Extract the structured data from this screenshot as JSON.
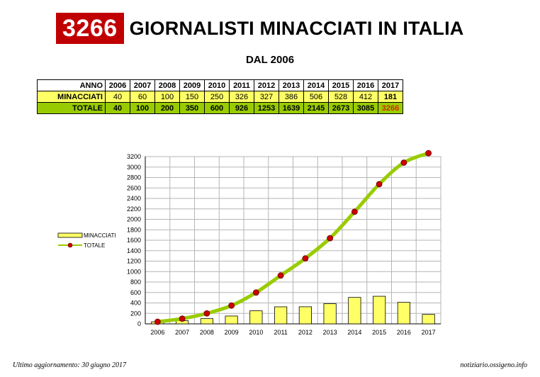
{
  "header": {
    "badge": "3266",
    "title": "GIORNALISTI MINACCIATI IN ITALIA",
    "subtitle": "DAL 2006"
  },
  "table": {
    "row_labels": [
      "ANNO",
      "MINACCIATI",
      "TOTALE"
    ],
    "years": [
      "2006",
      "2007",
      "2008",
      "2009",
      "2010",
      "2011",
      "2012",
      "2013",
      "2014",
      "2015",
      "2016",
      "2017"
    ],
    "minacciati": [
      "40",
      "60",
      "100",
      "150",
      "250",
      "326",
      "327",
      "386",
      "506",
      "528",
      "412",
      "181"
    ],
    "totale": [
      "40",
      "100",
      "200",
      "350",
      "600",
      "926",
      "1253",
      "1639",
      "2145",
      "2673",
      "3085",
      "3266"
    ],
    "row_colors": {
      "anno": "#ffffff",
      "minacciati": "#ffff66",
      "totale": "#99cc00",
      "highlight_text": "#d42a00"
    }
  },
  "chart_data": {
    "type": "bar",
    "categories": [
      "2006",
      "2007",
      "2008",
      "2009",
      "2010",
      "2011",
      "2012",
      "2013",
      "2014",
      "2015",
      "2016",
      "2017"
    ],
    "series": [
      {
        "name": "MINACCIATI",
        "type": "bar",
        "color": "#ffff66",
        "values": [
          40,
          60,
          100,
          150,
          250,
          326,
          327,
          386,
          506,
          528,
          412,
          181
        ]
      },
      {
        "name": "TOTALE",
        "type": "line",
        "color": "#99cc00",
        "marker_color": "#cc0000",
        "values": [
          40,
          100,
          200,
          350,
          600,
          926,
          1253,
          1639,
          2145,
          2673,
          3085,
          3266
        ]
      }
    ],
    "ylim": [
      0,
      3200
    ],
    "ytick_step": 200,
    "grid": true,
    "legend": "left"
  },
  "footer": {
    "left": "Ultimo aggiornamento: 30 giugno 2017",
    "right": "notiziario.ossigeno.info"
  }
}
